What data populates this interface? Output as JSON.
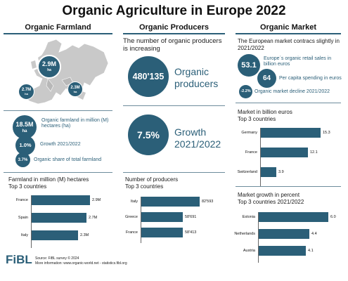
{
  "title": "Organic Agriculture in Europe 2022",
  "columns": {
    "farmland": "Organic Farmland",
    "producers": "Organic Producers",
    "market": "Organic Market"
  },
  "map": {
    "bubbles": [
      {
        "value": "2.9M",
        "unit": "ha"
      },
      {
        "value": "2.7M",
        "unit": "ha"
      },
      {
        "value": "2.3M",
        "unit": "ha"
      }
    ]
  },
  "farmland_stats": {
    "area_value": "18.5M",
    "area_unit": "ha",
    "area_text": "Organic farmland in million (M) hectares (ha)",
    "growth_value": "1.0%",
    "growth_text": "Growth 2021/2022",
    "share_value": "3.7%",
    "share_text": "Organic share of total farmland"
  },
  "producer_stats": {
    "intro": "The number of organic producers is increasing",
    "count_value": "480'135",
    "count_text": "Organic producers",
    "growth_value": "7.5%",
    "growth_text": "Growth 2021/2022"
  },
  "market_stats": {
    "intro": "The European market contracs slightly in 2021/2022",
    "sales_value": "53.1",
    "sales_text": "Europe´s organic retail sales in billion euros",
    "capita_value": "64",
    "capita_text": "Per capita spending in euros",
    "decline_value": "-2.2%",
    "decline_text": "Organic market decline 2021/2022"
  },
  "chart_data": [
    {
      "type": "bar",
      "orientation": "horizontal",
      "title": "Farmland in million (M) hectares",
      "subtitle": "Top 3 countries",
      "categories": [
        "France",
        "Spain",
        "Italy"
      ],
      "values": [
        2.9,
        2.7,
        2.3
      ],
      "labels": [
        "2.9M",
        "2.7M",
        "2.3M"
      ],
      "xlim": [
        0,
        3.2
      ]
    },
    {
      "type": "bar",
      "orientation": "horizontal",
      "title": "Number of producers",
      "subtitle": "Top 3 countries",
      "categories": [
        "Italy",
        "Greece",
        "France"
      ],
      "values": [
        82593,
        58691,
        58413
      ],
      "labels": [
        "82'593",
        "58'691",
        "58'413"
      ],
      "xlim": [
        0,
        95000
      ]
    },
    {
      "type": "bar",
      "orientation": "horizontal",
      "title": "Market in billion euros",
      "subtitle": "Top 3 countries",
      "categories": [
        "Germany",
        "France",
        "Switzerland"
      ],
      "values": [
        15.3,
        12.1,
        3.9
      ],
      "labels": [
        "15.3",
        "12.1",
        "3.9"
      ],
      "xlim": [
        0,
        18
      ]
    },
    {
      "type": "bar",
      "orientation": "horizontal",
      "title": "Market growth in percent",
      "subtitle": "Top 3 countries 2021/2022",
      "categories": [
        "Estonia",
        "Netherlands",
        "Austria"
      ],
      "values": [
        6.0,
        4.4,
        4.1
      ],
      "labels": [
        "6.0",
        "4.4",
        "4.1"
      ],
      "xlim": [
        0,
        6.7
      ]
    }
  ],
  "footer": {
    "logo": "FiBL",
    "source": "Source: FiBL survey © 2024",
    "info": "More information: www.organic-world.net - statistics.fibl.org"
  },
  "colors": {
    "accent": "#2b5f78",
    "map_land": "#c9c9c9"
  }
}
